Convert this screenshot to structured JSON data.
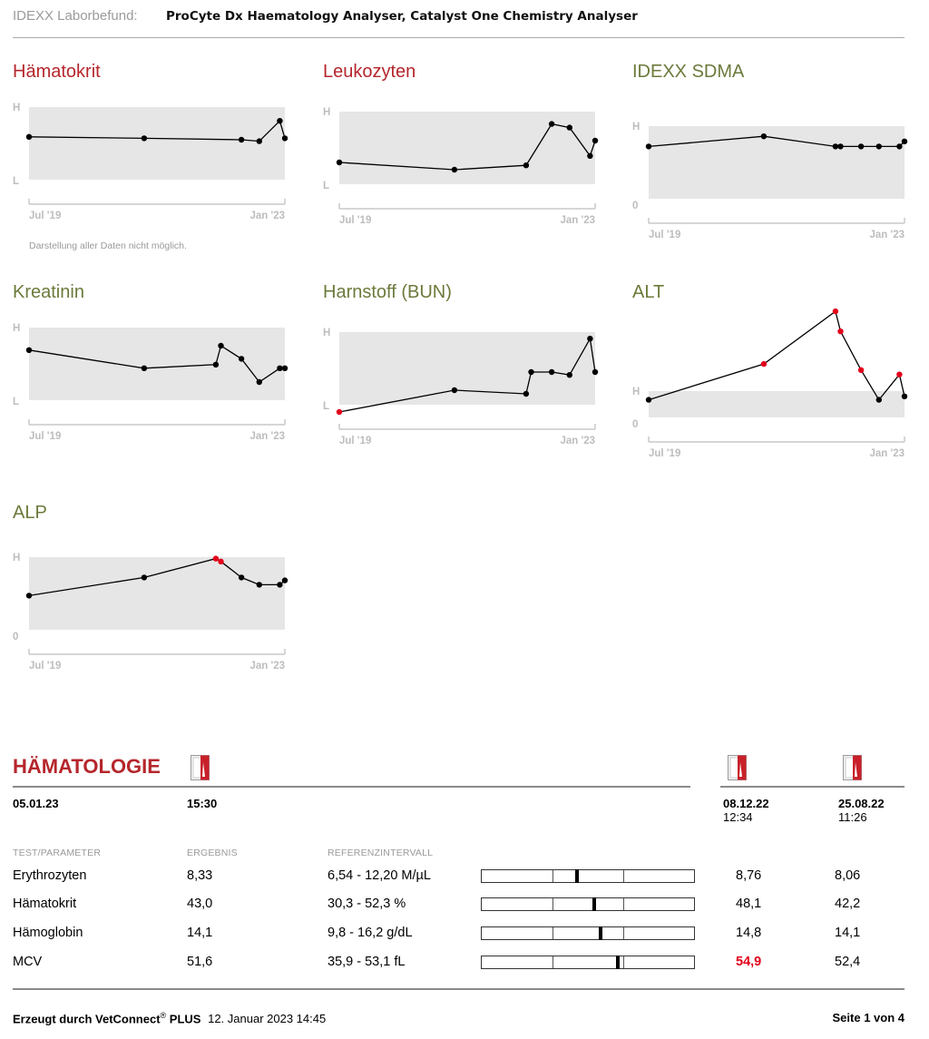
{
  "header": {
    "lab_label": "IDEXX Laborbefund:",
    "analysers": "ProCyte Dx Haematology Analyser, Catalyst One Chemistry Analyser"
  },
  "colors": {
    "title_red": "#b5262c",
    "title_olive": "#6b7a3b",
    "band_grey": "#e6e6e6",
    "point_normal": "#000000",
    "point_abnormal": "#e3001b",
    "flag_high": "#e3001b"
  },
  "chart_data": [
    {
      "type": "line",
      "title": "Hämatokrit",
      "title_color": "red",
      "band_labels": {
        "upper": "H",
        "lower": "L"
      },
      "x_tick_labels": [
        "Jul '19",
        "Jan '23"
      ],
      "note": "Darstellung aller Daten nicht möglich.",
      "points": [
        {
          "x": 0.0,
          "y": 0.59,
          "flag": false
        },
        {
          "x": 0.45,
          "y": 0.57,
          "flag": false
        },
        {
          "x": 0.83,
          "y": 0.55,
          "flag": false
        },
        {
          "x": 0.9,
          "y": 0.53,
          "flag": false
        },
        {
          "x": 0.98,
          "y": 0.81,
          "flag": false
        },
        {
          "x": 1.0,
          "y": 0.57,
          "flag": false
        }
      ]
    },
    {
      "type": "line",
      "title": "Leukozyten",
      "title_color": "red",
      "band_labels": {
        "upper": "H",
        "lower": "L"
      },
      "x_tick_labels": [
        "Jul '19",
        "Jan '23"
      ],
      "points": [
        {
          "x": 0.0,
          "y": 0.3,
          "flag": false
        },
        {
          "x": 0.45,
          "y": 0.2,
          "flag": false
        },
        {
          "x": 0.73,
          "y": 0.26,
          "flag": false
        },
        {
          "x": 0.83,
          "y": 0.83,
          "flag": false
        },
        {
          "x": 0.9,
          "y": 0.78,
          "flag": false
        },
        {
          "x": 0.98,
          "y": 0.39,
          "flag": false
        },
        {
          "x": 1.0,
          "y": 0.6,
          "flag": false
        }
      ]
    },
    {
      "type": "line",
      "title": "IDEXX SDMA",
      "title_color": "olive",
      "band_labels": {
        "upper": "H",
        "lower": "0"
      },
      "x_tick_labels": [
        "Jul '19",
        "Jan '23"
      ],
      "points": [
        {
          "x": 0.0,
          "y": 0.72,
          "flag": false
        },
        {
          "x": 0.45,
          "y": 0.86,
          "flag": false
        },
        {
          "x": 0.73,
          "y": 0.72,
          "flag": false
        },
        {
          "x": 0.75,
          "y": 0.72,
          "flag": false
        },
        {
          "x": 0.83,
          "y": 0.72,
          "flag": false
        },
        {
          "x": 0.9,
          "y": 0.72,
          "flag": false
        },
        {
          "x": 0.98,
          "y": 0.72,
          "flag": false
        },
        {
          "x": 1.0,
          "y": 0.79,
          "flag": false
        }
      ]
    },
    {
      "type": "line",
      "title": "Kreatinin",
      "title_color": "olive",
      "band_labels": {
        "upper": "H",
        "lower": "L"
      },
      "x_tick_labels": [
        "Jul '19",
        "Jan '23"
      ],
      "points": [
        {
          "x": 0.0,
          "y": 0.69,
          "flag": false
        },
        {
          "x": 0.45,
          "y": 0.44,
          "flag": false
        },
        {
          "x": 0.73,
          "y": 0.49,
          "flag": false
        },
        {
          "x": 0.75,
          "y": 0.75,
          "flag": false
        },
        {
          "x": 0.83,
          "y": 0.57,
          "flag": false
        },
        {
          "x": 0.9,
          "y": 0.25,
          "flag": false
        },
        {
          "x": 0.98,
          "y": 0.44,
          "flag": false
        },
        {
          "x": 1.0,
          "y": 0.44,
          "flag": false
        }
      ]
    },
    {
      "type": "line",
      "title": "Harnstoff (BUN)",
      "title_color": "olive",
      "band_labels": {
        "upper": "H",
        "lower": "L"
      },
      "x_tick_labels": [
        "Jul '19",
        "Jan '23"
      ],
      "points": [
        {
          "x": 0.0,
          "y": -0.1,
          "flag": true
        },
        {
          "x": 0.45,
          "y": 0.2,
          "flag": false
        },
        {
          "x": 0.73,
          "y": 0.15,
          "flag": false
        },
        {
          "x": 0.75,
          "y": 0.45,
          "flag": false
        },
        {
          "x": 0.83,
          "y": 0.45,
          "flag": false
        },
        {
          "x": 0.9,
          "y": 0.41,
          "flag": false
        },
        {
          "x": 0.98,
          "y": 0.91,
          "flag": false
        },
        {
          "x": 1.0,
          "y": 0.45,
          "flag": false
        }
      ]
    },
    {
      "type": "line",
      "title": "ALT",
      "title_color": "olive",
      "band_labels": {
        "upper": "H",
        "lower": "0"
      },
      "x_tick_labels": [
        "Jul '19",
        "Jan '23"
      ],
      "points": [
        {
          "x": 0.0,
          "y": 0.67,
          "flag": false
        },
        {
          "x": 0.45,
          "y": 2.03,
          "flag": true
        },
        {
          "x": 0.73,
          "y": 4.03,
          "flag": true
        },
        {
          "x": 0.75,
          "y": 3.27,
          "flag": true
        },
        {
          "x": 0.83,
          "y": 1.8,
          "flag": true
        },
        {
          "x": 0.9,
          "y": 0.67,
          "flag": false
        },
        {
          "x": 0.98,
          "y": 1.63,
          "flag": true
        },
        {
          "x": 1.0,
          "y": 0.8,
          "flag": false
        }
      ]
    },
    {
      "type": "line",
      "title": "ALP",
      "title_color": "olive",
      "band_labels": {
        "upper": "H",
        "lower": "0"
      },
      "x_tick_labels": [
        "Jul '19",
        "Jan '23"
      ],
      "points": [
        {
          "x": 0.0,
          "y": 0.47,
          "flag": false
        },
        {
          "x": 0.45,
          "y": 0.72,
          "flag": false
        },
        {
          "x": 0.73,
          "y": 0.98,
          "flag": true
        },
        {
          "x": 0.75,
          "y": 0.94,
          "flag": true
        },
        {
          "x": 0.83,
          "y": 0.72,
          "flag": false
        },
        {
          "x": 0.9,
          "y": 0.62,
          "flag": false
        },
        {
          "x": 0.98,
          "y": 0.62,
          "flag": false
        },
        {
          "x": 1.0,
          "y": 0.68,
          "flag": false
        }
      ]
    }
  ],
  "hematology": {
    "section_title": "HÄMATOLOGIE",
    "date": "05.01.23",
    "time": "15:30",
    "previous": [
      {
        "date": "08.12.22",
        "time": "12:34"
      },
      {
        "date": "25.08.22",
        "time": "11:26"
      }
    ],
    "columns": {
      "param": "TEST/PARAMETER",
      "result": "ERGEBNIS",
      "reference": "REFERENZINTERVALL"
    },
    "rows": [
      {
        "name": "Erythrozyten",
        "result": "8,33",
        "reference": "6,54 - 12,20 M/µL",
        "position": 0.45,
        "prev1": "8,76",
        "prev1_high": false,
        "prev2": "8,06"
      },
      {
        "name": "Hämatokrit",
        "result": "43,0",
        "reference": "30,3 - 52,3 %",
        "position": 0.53,
        "prev1": "48,1",
        "prev1_high": false,
        "prev2": "42,2"
      },
      {
        "name": "Hämoglobin",
        "result": "14,1",
        "reference": "9,8 - 16,2 g/dL",
        "position": 0.56,
        "prev1": "14,8",
        "prev1_high": false,
        "prev2": "14,1"
      },
      {
        "name": "MCV",
        "result": "51,6",
        "reference": "35,9 - 53,1 fL",
        "position": 0.64,
        "prev1": "54,9",
        "prev1_high": true,
        "prev2": "52,4"
      }
    ]
  },
  "footer": {
    "generated_label": "Erzeugt durch VetConnect",
    "registered": "®",
    "plus": "PLUS",
    "generated_at": "12. Januar 2023 14:45",
    "page": "Seite 1 von 4"
  }
}
